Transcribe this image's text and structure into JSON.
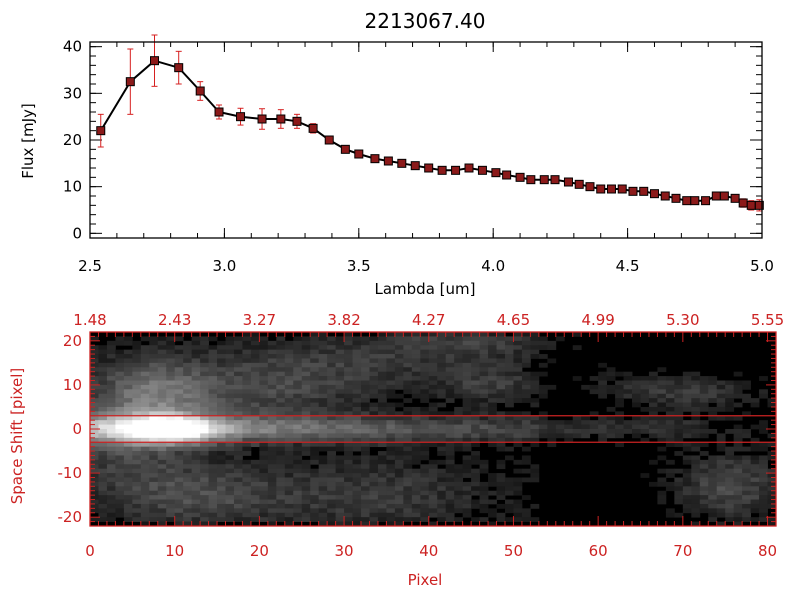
{
  "chart_data": [
    {
      "type": "line",
      "title": "2213067.40",
      "xlabel": "Lambda [um]",
      "ylabel": "Flux [mJy]",
      "xlim": [
        2.5,
        5.0
      ],
      "ylim": [
        -1,
        41
      ],
      "xticks": [
        "2.5",
        "3.0",
        "3.5",
        "4.0",
        "4.5",
        "5.0"
      ],
      "yticks": [
        "0",
        "10",
        "20",
        "30",
        "40"
      ],
      "line_color": "#000000",
      "marker_color": "#8b1a1a",
      "errorbar_color": "#d62020",
      "series": [
        {
          "x": [
            2.54,
            2.65,
            2.74,
            2.83,
            2.91,
            2.98,
            3.06,
            3.14,
            3.21,
            3.27,
            3.33,
            3.39,
            3.45,
            3.5,
            3.56,
            3.61,
            3.66,
            3.71,
            3.76,
            3.81,
            3.86,
            3.91,
            3.96,
            4.01,
            4.05,
            4.1,
            4.14,
            4.19,
            4.23,
            4.28,
            4.32,
            4.36,
            4.4,
            4.44,
            4.48,
            4.52,
            4.56,
            4.6,
            4.64,
            4.68,
            4.72,
            4.75,
            4.79,
            4.83,
            4.86,
            4.9,
            4.93,
            4.96,
            4.99
          ],
          "y": [
            22.0,
            32.5,
            37.0,
            35.5,
            30.5,
            26.0,
            25.0,
            24.5,
            24.5,
            24.0,
            22.5,
            20.0,
            18.0,
            17.0,
            16.0,
            15.5,
            15.0,
            14.5,
            14.0,
            13.5,
            13.5,
            14.0,
            13.5,
            13.0,
            12.5,
            12.0,
            11.5,
            11.5,
            11.5,
            11.0,
            10.5,
            10.0,
            9.5,
            9.5,
            9.5,
            9.0,
            9.0,
            8.5,
            8.0,
            7.5,
            7.0,
            7.0,
            7.0,
            8.0,
            8.0,
            7.5,
            6.5,
            6.0,
            6.0
          ],
          "yerr": [
            3.5,
            7.0,
            5.5,
            3.5,
            2.0,
            1.5,
            1.8,
            2.2,
            2.0,
            1.5,
            1.0,
            0.8,
            0.6,
            0.5,
            0.5,
            0.5,
            0.5,
            0.5,
            0.5,
            0.5,
            0.5,
            0.5,
            0.5,
            0.5,
            0.5,
            0.5,
            0.5,
            0.5,
            0.5,
            0.5,
            0.5,
            0.5,
            0.5,
            0.5,
            0.5,
            0.5,
            0.5,
            0.5,
            0.5,
            0.5,
            0.5,
            0.5,
            0.5,
            0.6,
            0.6,
            0.7,
            0.9,
            1.0,
            1.2
          ]
        }
      ]
    },
    {
      "type": "heatmap",
      "xlabel": "Pixel",
      "ylabel": "Space Shift [pixel]",
      "xlim": [
        0,
        81
      ],
      "ylim": [
        -22,
        22
      ],
      "xticks": [
        "0",
        "10",
        "20",
        "30",
        "40",
        "50",
        "60",
        "70",
        "80"
      ],
      "yticks": [
        "-20",
        "-10",
        "0",
        "10",
        "20"
      ],
      "top_axis_ticks": [
        "1.48",
        "2.43",
        "3.27",
        "3.82",
        "4.27",
        "4.65",
        "4.99",
        "5.30",
        "5.55"
      ],
      "extraction_aperture": [
        -3,
        3
      ],
      "colormap": "grayscale",
      "axis_color": "#cc2222"
    }
  ]
}
